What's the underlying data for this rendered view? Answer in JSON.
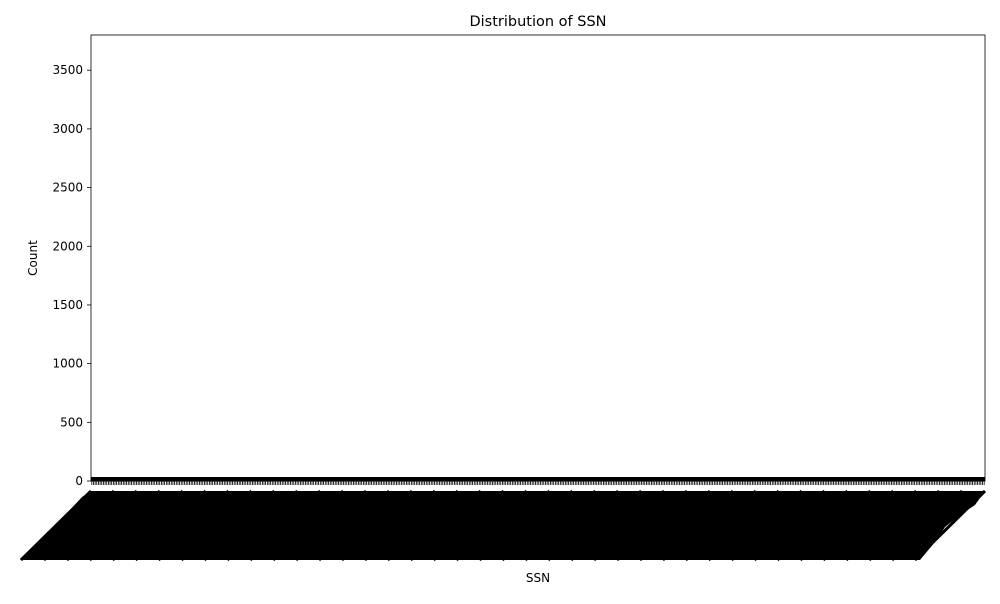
{
  "chart_data": {
    "type": "bar",
    "title": "Distribution of SSN",
    "xlabel": "SSN",
    "ylabel": "Count",
    "ylim": [
      0,
      3800
    ],
    "yticks": [
      0,
      500,
      1000,
      1500,
      2000,
      2500,
      3000,
      3500
    ],
    "category_count_estimate": 540,
    "values_estimate": 1,
    "colors": {
      "bar": "#1f77b4",
      "edge": "#000000",
      "axis": "#000000",
      "background": "#ffffff"
    },
    "grid": false
  }
}
